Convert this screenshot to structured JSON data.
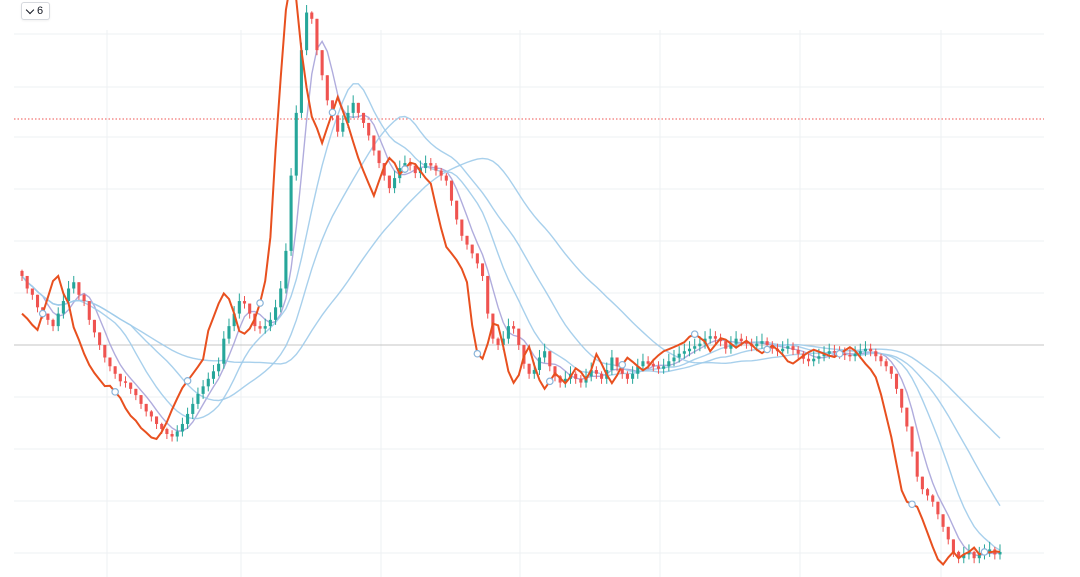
{
  "toolbar": {
    "indicator_count": "6",
    "toggle_icon": "chevron-down-icon"
  },
  "colors": {
    "background": "#ffffff",
    "grid": "#eef0f3",
    "up_candle": "#26a69a",
    "down_candle": "#ef5350",
    "indicator_line": "#e8501f",
    "ma_fast": "#a7a3d9",
    "ma_slow": "#9fcbea",
    "marker_fill": "#ffffff",
    "marker_stroke": "#8ab4d9",
    "price_line": "#ef5350",
    "baseline": "#c4c4c4"
  },
  "chart_data": {
    "type": "candlestick",
    "title": "",
    "xlabel": "",
    "ylabel": "",
    "grid": true,
    "candles_close": [
      340,
      330,
      325,
      315,
      310,
      305,
      300,
      310,
      320,
      330,
      335,
      325,
      320,
      305,
      295,
      285,
      275,
      268,
      262,
      256,
      255,
      250,
      245,
      238,
      232,
      228,
      222,
      218,
      214,
      212,
      216,
      222,
      230,
      238,
      246,
      252,
      258,
      264,
      270,
      290,
      300,
      310,
      320,
      318,
      310,
      300,
      298,
      300,
      305,
      315,
      330,
      360,
      420,
      470,
      520,
      550,
      545,
      520,
      500,
      480,
      468,
      455,
      462,
      470,
      478,
      470,
      462,
      452,
      440,
      430,
      420,
      410,
      418,
      426,
      430,
      428,
      422,
      426,
      430,
      428,
      424,
      420,
      416,
      400,
      385,
      372,
      365,
      358,
      350,
      340,
      310,
      290,
      285,
      290,
      300,
      298,
      285,
      270,
      262,
      265,
      275,
      280,
      268,
      260,
      255,
      258,
      262,
      258,
      255,
      260,
      265,
      262,
      258,
      265,
      275,
      268,
      262,
      258,
      262,
      268,
      272,
      270,
      268,
      266,
      268,
      272,
      275,
      278,
      280,
      282,
      284,
      286,
      290,
      292,
      290,
      288,
      282,
      286,
      290,
      288,
      286,
      284,
      286,
      288,
      285,
      282,
      280,
      282,
      284,
      281,
      278,
      274,
      272,
      274,
      276,
      278,
      280,
      279,
      278,
      277,
      276,
      278,
      280,
      282,
      280,
      276,
      272,
      268,
      262,
      250,
      235,
      220,
      200,
      180,
      170,
      165,
      160,
      150,
      140,
      130,
      120,
      115,
      118,
      120,
      115,
      118,
      120,
      122,
      118,
      120
    ],
    "candles_high": [
      345,
      336,
      330,
      320,
      315,
      310,
      306,
      315,
      326,
      336,
      340,
      330,
      326,
      311,
      300,
      290,
      280,
      273,
      267,
      261,
      260,
      255,
      250,
      243,
      237,
      233,
      227,
      223,
      219,
      217,
      221,
      227,
      235,
      243,
      251,
      257,
      263,
      269,
      275,
      296,
      306,
      316,
      326,
      324,
      316,
      306,
      304,
      306,
      311,
      321,
      336,
      366,
      426,
      476,
      526,
      556,
      551,
      526,
      506,
      486,
      474,
      461,
      468,
      476,
      484,
      476,
      468,
      458,
      446,
      436,
      426,
      416,
      424,
      432,
      436,
      434,
      428,
      432,
      436,
      434,
      430,
      426,
      422,
      406,
      391,
      378,
      371,
      364,
      356,
      346,
      316,
      296,
      291,
      296,
      306,
      304,
      291,
      276,
      268,
      271,
      281,
      286,
      274,
      266,
      261,
      264,
      268,
      264,
      261,
      266,
      271,
      268,
      264,
      271,
      281,
      274,
      268,
      264,
      268,
      274,
      278,
      276,
      274,
      272,
      274,
      278,
      281,
      284,
      286,
      288,
      290,
      292,
      296,
      298,
      296,
      294,
      288,
      292,
      296,
      294,
      292,
      290,
      292,
      294,
      291,
      288,
      286,
      288,
      290,
      287,
      284,
      280,
      278,
      280,
      282,
      284,
      286,
      285,
      284,
      283,
      282,
      284,
      286,
      288,
      286,
      282,
      278,
      274,
      268,
      256,
      241,
      226,
      206,
      186,
      176,
      171,
      166,
      156,
      146,
      136,
      126,
      121,
      124,
      126,
      121,
      124,
      126,
      128,
      124,
      126
    ]
  }
}
